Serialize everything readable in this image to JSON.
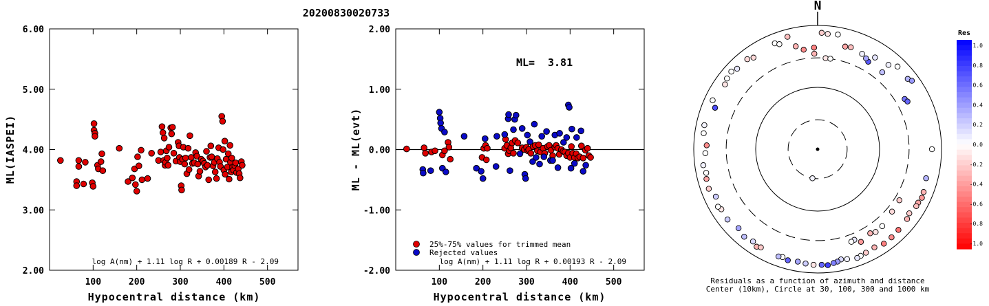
{
  "title": "20200830020733",
  "chart_data": [
    {
      "type": "scatter",
      "ylabel": "ML(IASPEI)",
      "xlabel": "Hypocentral distance (km)",
      "xlim": [
        0,
        570
      ],
      "ylim": [
        2.0,
        6.0
      ],
      "xticks": [
        "100",
        "200",
        "300",
        "400",
        "500"
      ],
      "yticks": [
        "2.00",
        "3.00",
        "4.00",
        "5.00",
        "6.00"
      ],
      "formula": "log A(nm) + 1.11 log R + 0.00189 R - 2.09",
      "points": [
        [
          25,
          3.82
        ],
        [
          62,
          3.47
        ],
        [
          62,
          3.4
        ],
        [
          67,
          3.72
        ],
        [
          67,
          3.82
        ],
        [
          78,
          3.43
        ],
        [
          82,
          3.79
        ],
        [
          98,
          3.45
        ],
        [
          100,
          3.39
        ],
        [
          102,
          4.43
        ],
        [
          102,
          4.32
        ],
        [
          104,
          4.27
        ],
        [
          104,
          4.22
        ],
        [
          110,
          3.74
        ],
        [
          112,
          3.68
        ],
        [
          118,
          3.8
        ],
        [
          120,
          3.93
        ],
        [
          122,
          3.65
        ],
        [
          160,
          4.02
        ],
        [
          180,
          3.47
        ],
        [
          190,
          3.53
        ],
        [
          195,
          3.68
        ],
        [
          197,
          3.42
        ],
        [
          200,
          3.31
        ],
        [
          202,
          3.88
        ],
        [
          205,
          3.73
        ],
        [
          210,
          3.99
        ],
        [
          212,
          3.5
        ],
        [
          225,
          3.52
        ],
        [
          234,
          3.94
        ],
        [
          250,
          3.82
        ],
        [
          255,
          3.96
        ],
        [
          258,
          4.38
        ],
        [
          260,
          4.28
        ],
        [
          262,
          3.82
        ],
        [
          263,
          4.19
        ],
        [
          265,
          3.74
        ],
        [
          266,
          3.79
        ],
        [
          268,
          3.98
        ],
        [
          270,
          3.86
        ],
        [
          272,
          3.74
        ],
        [
          274,
          4.04
        ],
        [
          278,
          4.36
        ],
        [
          280,
          4.26
        ],
        [
          282,
          4.37
        ],
        [
          285,
          3.94
        ],
        [
          290,
          3.81
        ],
        [
          295,
          4.12
        ],
        [
          297,
          4.06
        ],
        [
          298,
          3.87
        ],
        [
          300,
          3.8
        ],
        [
          302,
          3.4
        ],
        [
          303,
          3.33
        ],
        [
          305,
          3.84
        ],
        [
          307,
          4.04
        ],
        [
          310,
          3.76
        ],
        [
          312,
          3.86
        ],
        [
          315,
          3.6
        ],
        [
          318,
          4.02
        ],
        [
          320,
          3.67
        ],
        [
          322,
          4.23
        ],
        [
          325,
          3.87
        ],
        [
          328,
          3.77
        ],
        [
          332,
          3.78
        ],
        [
          335,
          3.95
        ],
        [
          338,
          3.89
        ],
        [
          340,
          3.76
        ],
        [
          342,
          3.56
        ],
        [
          345,
          3.64
        ],
        [
          348,
          3.84
        ],
        [
          352,
          3.81
        ],
        [
          355,
          3.77
        ],
        [
          358,
          3.71
        ],
        [
          360,
          3.97
        ],
        [
          362,
          3.74
        ],
        [
          365,
          3.5
        ],
        [
          368,
          3.87
        ],
        [
          370,
          4.06
        ],
        [
          372,
          3.88
        ],
        [
          375,
          3.73
        ],
        [
          378,
          3.79
        ],
        [
          380,
          3.63
        ],
        [
          383,
          3.52
        ],
        [
          385,
          3.85
        ],
        [
          388,
          4.03
        ],
        [
          390,
          3.79
        ],
        [
          392,
          3.72
        ],
        [
          395,
          4.55
        ],
        [
          397,
          4.47
        ],
        [
          398,
          4.0
        ],
        [
          400,
          3.66
        ],
        [
          402,
          4.14
        ],
        [
          403,
          3.59
        ],
        [
          405,
          3.84
        ],
        [
          408,
          3.71
        ],
        [
          410,
          3.93
        ],
        [
          412,
          3.51
        ],
        [
          414,
          4.07
        ],
        [
          415,
          3.79
        ],
        [
          417,
          3.63
        ],
        [
          418,
          3.86
        ],
        [
          420,
          3.71
        ],
        [
          422,
          3.66
        ],
        [
          425,
          3.73
        ],
        [
          427,
          3.78
        ],
        [
          429,
          3.62
        ],
        [
          433,
          3.68
        ],
        [
          435,
          3.6
        ],
        [
          437,
          3.53
        ],
        [
          440,
          3.8
        ],
        [
          442,
          3.74
        ]
      ]
    },
    {
      "type": "scatter",
      "ylabel": "ML - ML(evt)",
      "xlabel": "Hypocentral distance (km)",
      "xlim": [
        0,
        570
      ],
      "ylim": [
        -2.0,
        2.0
      ],
      "xticks": [
        "100",
        "200",
        "300",
        "400",
        "500"
      ],
      "yticks": [
        "-2.00",
        "-1.00",
        "0.00",
        "1.00",
        "2.00"
      ],
      "annotation_label": "ML=",
      "annotation_value": "3.81",
      "legend_trimmed": "25%-75% values for trimmed mean",
      "legend_rejected": "Rejected values",
      "formula": "log A(nm) + 1.11 log R + 0.00193 R - 2.09",
      "colors": {
        "trimmed": "#e00000",
        "rejected": "#0a0ac8"
      },
      "trimmed": [
        [
          25,
          0.01
        ],
        [
          65,
          0.03
        ],
        [
          68,
          -0.06
        ],
        [
          82,
          -0.04
        ],
        [
          90,
          -0.02
        ],
        [
          107,
          -0.09
        ],
        [
          112,
          -0.02
        ],
        [
          120,
          0.12
        ],
        [
          122,
          0.04
        ],
        [
          125,
          -0.16
        ],
        [
          198,
          -0.13
        ],
        [
          202,
          0.02
        ],
        [
          206,
          0.07
        ],
        [
          208,
          -0.17
        ],
        [
          210,
          0.02
        ],
        [
          250,
          0.02
        ],
        [
          252,
          0.17
        ],
        [
          255,
          0.07
        ],
        [
          258,
          -0.07
        ],
        [
          261,
          -0.02
        ],
        [
          264,
          0.03
        ],
        [
          267,
          0.11
        ],
        [
          270,
          -0.06
        ],
        [
          274,
          0.15
        ],
        [
          280,
          0.11
        ],
        [
          290,
          0.03
        ],
        [
          295,
          0.0
        ],
        [
          300,
          0.04
        ],
        [
          303,
          -0.02
        ],
        [
          305,
          0.0
        ],
        [
          310,
          -0.06
        ],
        [
          315,
          0.05
        ],
        [
          320,
          0.07
        ],
        [
          325,
          -0.02
        ],
        [
          328,
          0.08
        ],
        [
          332,
          -0.04
        ],
        [
          338,
          0.02
        ],
        [
          342,
          -0.06
        ],
        [
          348,
          0.05
        ],
        [
          352,
          0.07
        ],
        [
          356,
          -0.01
        ],
        [
          360,
          -0.1
        ],
        [
          365,
          0.04
        ],
        [
          368,
          0.07
        ],
        [
          372,
          0.02
        ],
        [
          375,
          -0.08
        ],
        [
          380,
          0.0
        ],
        [
          384,
          -0.03
        ],
        [
          388,
          -0.04
        ],
        [
          392,
          -0.1
        ],
        [
          396,
          -0.06
        ],
        [
          400,
          -0.13
        ],
        [
          403,
          0.05
        ],
        [
          406,
          -0.06
        ],
        [
          410,
          -0.13
        ],
        [
          414,
          -0.07
        ],
        [
          418,
          -0.14
        ],
        [
          422,
          -0.12
        ],
        [
          426,
          0.06
        ],
        [
          430,
          -0.14
        ],
        [
          435,
          -0.01
        ],
        [
          440,
          0.02
        ],
        [
          443,
          -0.1
        ],
        [
          447,
          -0.13
        ]
      ],
      "rejected": [
        [
          62,
          -0.33
        ],
        [
          63,
          -0.39
        ],
        [
          80,
          -0.35
        ],
        [
          100,
          0.62
        ],
        [
          102,
          0.52
        ],
        [
          103,
          0.44
        ],
        [
          105,
          0.35
        ],
        [
          107,
          -0.31
        ],
        [
          112,
          0.29
        ],
        [
          115,
          -0.37
        ],
        [
          157,
          0.22
        ],
        [
          185,
          -0.31
        ],
        [
          196,
          -0.36
        ],
        [
          200,
          -0.48
        ],
        [
          205,
          0.18
        ],
        [
          230,
          -0.28
        ],
        [
          232,
          0.22
        ],
        [
          250,
          0.25
        ],
        [
          258,
          0.51
        ],
        [
          259,
          0.58
        ],
        [
          262,
          -0.35
        ],
        [
          270,
          0.33
        ],
        [
          273,
          0.5
        ],
        [
          276,
          0.57
        ],
        [
          285,
          -0.07
        ],
        [
          290,
          0.35
        ],
        [
          296,
          -0.41
        ],
        [
          298,
          -0.48
        ],
        [
          302,
          0.24
        ],
        [
          308,
          0.13
        ],
        [
          314,
          -0.2
        ],
        [
          318,
          0.42
        ],
        [
          322,
          -0.13
        ],
        [
          330,
          -0.24
        ],
        [
          335,
          0.22
        ],
        [
          340,
          -0.12
        ],
        [
          346,
          0.3
        ],
        [
          355,
          -0.18
        ],
        [
          360,
          -0.18
        ],
        [
          365,
          0.24
        ],
        [
          372,
          -0.3
        ],
        [
          376,
          0.27
        ],
        [
          385,
          0.12
        ],
        [
          392,
          0.2
        ],
        [
          396,
          0.74
        ],
        [
          398,
          0.7
        ],
        [
          402,
          -0.31
        ],
        [
          404,
          0.34
        ],
        [
          410,
          -0.23
        ],
        [
          415,
          0.2
        ],
        [
          425,
          0.31
        ],
        [
          430,
          -0.36
        ],
        [
          436,
          -0.26
        ]
      ]
    },
    {
      "type": "polar-scatter",
      "north_label": "N",
      "caption_line1": "Residuals as a function of azimuth and distance",
      "caption_line2": "Center (10km), Circle at 30, 100, 300 and 1000 km",
      "rings_km": [
        30,
        100,
        300,
        1000
      ],
      "points": [
        [
          190,
          30,
          0.05
        ],
        [
          5,
          300,
          -0.1
        ],
        [
          8,
          300,
          0.0
        ],
        [
          358,
          350,
          -0.3
        ],
        [
          352,
          420,
          -0.45
        ],
        [
          358,
          440,
          -0.5
        ],
        [
          348,
          500,
          -0.3
        ],
        [
          15,
          520,
          -0.35
        ],
        [
          18,
          540,
          -0.25
        ],
        [
          25,
          500,
          0.05
        ],
        [
          32,
          560,
          0.1
        ],
        [
          30,
          430,
          0.65
        ],
        [
          28,
          460,
          0.35
        ],
        [
          40,
          420,
          0.25
        ],
        [
          40,
          600,
          0.05
        ],
        [
          44,
          720,
          0.0
        ],
        [
          52,
          700,
          0.3
        ],
        [
          54,
          760,
          0.4
        ],
        [
          60,
          420,
          0.55
        ],
        [
          62,
          440,
          0.6
        ],
        [
          155,
          450,
          -0.4
        ],
        [
          148,
          400,
          -0.3
        ],
        [
          122,
          360,
          -0.2
        ],
        [
          130,
          370,
          -0.15
        ],
        [
          140,
          420,
          0.0
        ],
        [
          145,
          430,
          -0.1
        ],
        [
          158,
          380,
          0.1
        ],
        [
          160,
          390,
          0.0
        ],
        [
          90,
          700,
          0.0
        ],
        [
          105,
          650,
          0.3
        ],
        [
          112,
          700,
          -0.3
        ],
        [
          115,
          720,
          -0.4
        ],
        [
          118,
          690,
          -0.35
        ],
        [
          120,
          690,
          -0.25
        ],
        [
          125,
          640,
          -0.2
        ],
        [
          128,
          680,
          -0.3
        ],
        [
          135,
          700,
          -0.55
        ],
        [
          140,
          720,
          -0.45
        ],
        [
          145,
          730,
          -0.5
        ],
        [
          150,
          680,
          -0.3
        ],
        [
          155,
          700,
          -0.2
        ],
        [
          158,
          720,
          0.0
        ],
        [
          160,
          740,
          0.1
        ],
        [
          165,
          690,
          0.05
        ],
        [
          168,
          660,
          0.15
        ],
        [
          170,
          700,
          0.4
        ],
        [
          172,
          720,
          0.5
        ],
        [
          175,
          760,
          0.75
        ],
        [
          178,
          740,
          0.6
        ],
        [
          182,
          740,
          -0.1
        ],
        [
          186,
          720,
          0.2
        ],
        [
          190,
          700,
          0.35
        ],
        [
          195,
          720,
          0.6
        ],
        [
          198,
          680,
          0.0
        ],
        [
          200,
          700,
          0.25
        ],
        [
          212,
          720,
          -0.3
        ],
        [
          210,
          680,
          -0.2
        ],
        [
          215,
          660,
          0.15
        ],
        [
          220,
          700,
          0.25
        ],
        [
          225,
          640,
          0.35
        ],
        [
          232,
          700,
          0.2
        ],
        [
          238,
          680,
          -0.1
        ],
        [
          240,
          720,
          0.0
        ],
        [
          245,
          650,
          0.2
        ],
        [
          250,
          740,
          -0.2
        ],
        [
          255,
          720,
          -0.35
        ],
        [
          258,
          690,
          0.0
        ],
        [
          262,
          730,
          0.05
        ],
        [
          268,
          650,
          0.0
        ],
        [
          272,
          620,
          -0.45
        ],
        [
          278,
          720,
          0.0
        ],
        [
          282,
          740,
          0.05
        ],
        [
          292,
          610,
          0.7
        ],
        [
          295,
          740,
          0.0
        ],
        [
          305,
          670,
          -0.1
        ],
        [
          308,
          720,
          0.0
        ],
        [
          312,
          750,
          0.0
        ],
        [
          315,
          690,
          0.1
        ],
        [
          322,
          700,
          -0.15
        ],
        [
          325,
          640,
          -0.15
        ],
        [
          338,
          700,
          0.0
        ],
        [
          340,
          640,
          0.0
        ],
        [
          345,
          760,
          -0.25
        ],
        [
          2,
          760,
          -0.2
        ],
        [
          5,
          740,
          -0.1
        ],
        [
          10,
          760,
          0.0
        ]
      ]
    }
  ],
  "colorbar": {
    "title": "Res",
    "labels": [
      "1.0",
      "0.8",
      "0.6",
      "0.4",
      "0.2",
      "0.0",
      "-0.2",
      "-0.4",
      "-0.6",
      "-0.8",
      "-1.0"
    ]
  }
}
